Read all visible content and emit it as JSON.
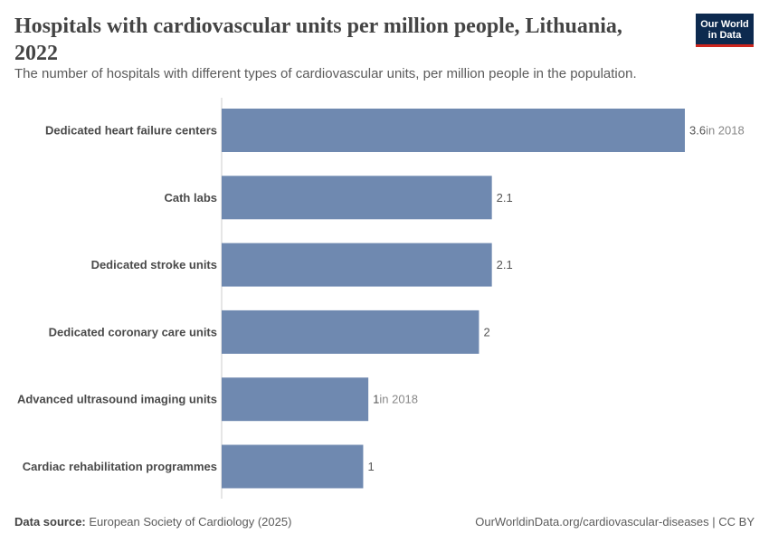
{
  "header": {
    "title": "Hospitals with cardiovascular units per million people, Lithuania, 2022",
    "subtitle": "The number of hospitals with different types of cardiovascular units, per million people in the population."
  },
  "logo": {
    "line1": "Our World",
    "line2": "in Data",
    "bg_color": "#0d2a4f",
    "accent_color": "#ce261e"
  },
  "footer": {
    "source_label": "Data source:",
    "source_text": "European Society of Cardiology (2025)",
    "url_text": "OurWorldinData.org/cardiovascular-diseases | CC BY"
  },
  "chart_data": {
    "type": "bar",
    "orientation": "horizontal",
    "bar_color": "#6f89b0",
    "categories": [
      "Dedicated heart failure centers",
      "Cath labs",
      "Dedicated stroke units",
      "Dedicated coronary care units",
      "Advanced ultrasound imaging units",
      "Cardiac rehabilitation programmes"
    ],
    "values": [
      3.6,
      2.1,
      2.1,
      2.0,
      1.14,
      1.1
    ],
    "value_labels": [
      "3.6",
      "2.1",
      "2.1",
      "2",
      "1",
      "1"
    ],
    "notes": [
      "in 2018",
      "",
      "",
      "",
      "in 2018",
      ""
    ],
    "xlim": [
      0,
      3.6
    ],
    "grid": false,
    "title": "Hospitals with cardiovascular units per million people, Lithuania, 2022"
  }
}
